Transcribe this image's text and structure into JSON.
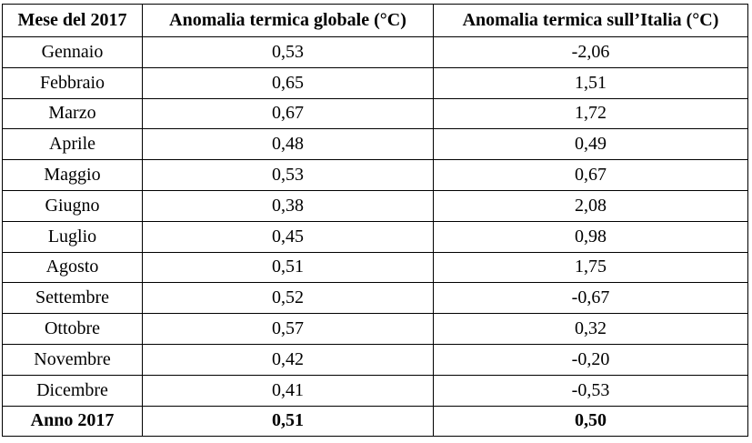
{
  "table": {
    "headers": [
      "Mese del 2017",
      "Anomalia termica globale (°C)",
      "Anomalia termica sull’Italia (°C)"
    ],
    "rows": [
      [
        "Gennaio",
        "0,53",
        "-2,06"
      ],
      [
        "Febbraio",
        "0,65",
        "1,51"
      ],
      [
        "Marzo",
        "0,67",
        "1,72"
      ],
      [
        "Aprile",
        "0,48",
        "0,49"
      ],
      [
        "Maggio",
        "0,53",
        "0,67"
      ],
      [
        "Giugno",
        "0,38",
        "2,08"
      ],
      [
        "Luglio",
        "0,45",
        "0,98"
      ],
      [
        "Agosto",
        "0,51",
        "1,75"
      ],
      [
        "Settembre",
        "0,52",
        "-0,67"
      ],
      [
        "Ottobre",
        "0,57",
        "0,32"
      ],
      [
        "Novembre",
        "0,42",
        "-0,20"
      ],
      [
        "Dicembre",
        "0,41",
        "-0,53"
      ]
    ],
    "total": [
      "Anno 2017",
      "0,51",
      "0,50"
    ]
  }
}
